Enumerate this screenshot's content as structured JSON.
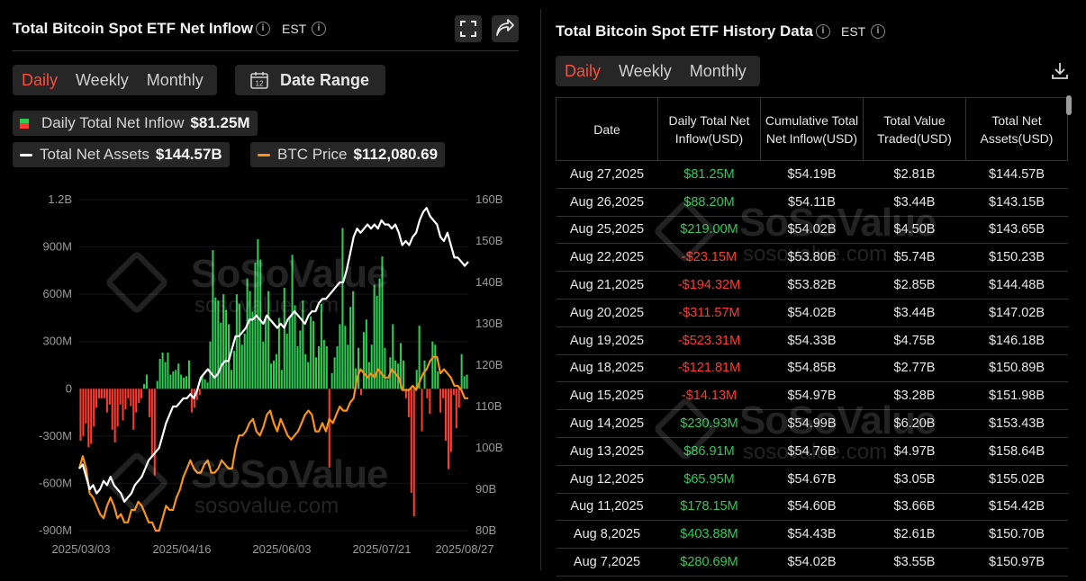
{
  "left": {
    "title": "Total Bitcoin Spot ETF Net Inflow",
    "timezone": "EST",
    "tabs": [
      {
        "label": "Daily",
        "active": true
      },
      {
        "label": "Weekly",
        "active": false
      },
      {
        "label": "Monthly",
        "active": false
      }
    ],
    "date_range_label": "Date Range",
    "calendar_day": "12",
    "stats": {
      "daily_inflow": {
        "label": "Daily Total Net Inflow",
        "value": "$81.25M"
      },
      "net_assets": {
        "label": "Total Net Assets",
        "value": "$144.57B"
      },
      "btc_price": {
        "label": "BTC Price",
        "value": "$112,080.69"
      }
    },
    "icons": {
      "expand": "fullscreen-icon",
      "share": "share-icon",
      "calendar": "calendar-icon",
      "info": "info-icon"
    }
  },
  "right": {
    "title": "Total Bitcoin Spot ETF History Data",
    "timezone": "EST",
    "tabs": [
      {
        "label": "Daily",
        "active": true
      },
      {
        "label": "Weekly",
        "active": false
      },
      {
        "label": "Monthly",
        "active": false
      }
    ],
    "download_icon": "download-icon",
    "table": {
      "headers": [
        "Date",
        "Daily Total Net Inflow(USD)",
        "Cumulative Total Net Inflow(USD)",
        "Total Value Traded(USD)",
        "Total Net Assets(USD)"
      ],
      "rows": [
        [
          "Aug 27,2025",
          "$81.25M",
          "$54.19B",
          "$2.81B",
          "$144.57B"
        ],
        [
          "Aug 26,2025",
          "$88.20M",
          "$54.11B",
          "$3.44B",
          "$143.15B"
        ],
        [
          "Aug 25,2025",
          "$219.00M",
          "$54.02B",
          "$4.50B",
          "$143.65B"
        ],
        [
          "Aug 22,2025",
          "-$23.15M",
          "$53.80B",
          "$5.74B",
          "$150.23B"
        ],
        [
          "Aug 21,2025",
          "-$194.32M",
          "$53.82B",
          "$2.85B",
          "$144.48B"
        ],
        [
          "Aug 20,2025",
          "-$311.57M",
          "$54.02B",
          "$3.44B",
          "$147.02B"
        ],
        [
          "Aug 19,2025",
          "-$523.31M",
          "$54.33B",
          "$4.75B",
          "$146.18B"
        ],
        [
          "Aug 18,2025",
          "-$121.81M",
          "$54.85B",
          "$2.77B",
          "$150.89B"
        ],
        [
          "Aug 15,2025",
          "-$14.13M",
          "$54.97B",
          "$3.28B",
          "$151.98B"
        ],
        [
          "Aug 14,2025",
          "$230.93M",
          "$54.99B",
          "$6.20B",
          "$153.43B"
        ],
        [
          "Aug 13,2025",
          "$86.91M",
          "$54.76B",
          "$4.97B",
          "$158.64B"
        ],
        [
          "Aug 12,2025",
          "$65.95M",
          "$54.67B",
          "$3.05B",
          "$155.02B"
        ],
        [
          "Aug 11,2025",
          "$178.15M",
          "$54.60B",
          "$3.66B",
          "$154.42B"
        ],
        [
          "Aug 8,2025",
          "$403.88M",
          "$54.43B",
          "$2.61B",
          "$150.70B"
        ],
        [
          "Aug 7,2025",
          "$280.69M",
          "$54.02B",
          "$3.55B",
          "$150.97B"
        ]
      ]
    }
  },
  "watermark": {
    "name": "SoSoValue",
    "url": "sosovalue.com"
  },
  "colors": {
    "accent": "#ff4d3a",
    "positive": "#2ecc55",
    "negative": "#ff3b30",
    "btc_line": "#f7931a",
    "assets_line": "#ffffff",
    "background": "#000000"
  },
  "chart_data": {
    "type": "bar",
    "y_left_ticks": [
      "1.2B",
      "900M",
      "600M",
      "300M",
      "0",
      "-300M",
      "-600M",
      "-900M"
    ],
    "y_left_range": [
      -900,
      1200
    ],
    "y_right_ticks": [
      "160B",
      "150B",
      "140B",
      "130B",
      "120B",
      "110B",
      "100B",
      "90B",
      "80B"
    ],
    "y_right_range": [
      80,
      160
    ],
    "x_ticks": [
      "2025/03/03",
      "2025/04/16",
      "2025/06/03",
      "2025/07/21",
      "2025/08/27"
    ],
    "series": [
      {
        "name": "Daily Total Net Inflow",
        "kind": "bar",
        "unit": "M USD",
        "values": [
          -330,
          -300,
          -220,
          -370,
          -350,
          -240,
          -120,
          -60,
          -60,
          -60,
          -150,
          -100,
          -260,
          -340,
          -240,
          -100,
          -200,
          -130,
          -60,
          -110,
          -260,
          -150,
          -90,
          -60,
          30,
          90,
          -180,
          -430,
          -550,
          50,
          190,
          230,
          170,
          230,
          90,
          110,
          120,
          160,
          90,
          70,
          80,
          180,
          -150,
          -120,
          -70,
          -40,
          80,
          60,
          40,
          300,
          880,
          580,
          560,
          420,
          600,
          500,
          410,
          120,
          240,
          600,
          540,
          280,
          350,
          700,
          620,
          490,
          800,
          950,
          820,
          300,
          460,
          620,
          160,
          180,
          220,
          450,
          120,
          640,
          350,
          460,
          850,
          530,
          270,
          370,
          560,
          220,
          170,
          460,
          430,
          200,
          270,
          540,
          310,
          270,
          -500,
          100,
          200,
          270,
          410,
          1020,
          400,
          280,
          520,
          620,
          130,
          260,
          -40,
          360,
          440,
          170,
          280,
          660,
          590,
          700,
          840,
          260,
          60,
          200,
          410,
          180,
          160,
          290,
          180,
          -60,
          -180,
          -660,
          -810,
          120,
          400,
          -270,
          180,
          -60,
          -160,
          300,
          280,
          110,
          -150,
          -60,
          -330,
          -510,
          -400,
          -40,
          -250,
          -120,
          220,
          80,
          90
        ]
      },
      {
        "name": "Total Net Assets",
        "kind": "line",
        "unit": "B USD",
        "values": [
          95,
          96,
          93,
          90,
          91,
          89,
          90,
          92,
          91,
          93,
          91,
          90,
          89,
          87,
          88,
          89,
          91,
          92,
          93,
          95,
          97,
          98,
          99,
          100,
          103,
          106,
          108,
          110,
          110,
          111,
          112,
          112,
          113,
          112,
          114,
          117,
          118,
          119,
          118,
          117,
          118,
          120,
          121,
          121,
          124,
          127,
          127,
          128,
          129,
          131,
          131,
          132,
          131,
          130,
          132,
          131,
          130,
          129,
          130,
          129,
          131,
          132,
          133,
          132,
          131,
          130,
          132,
          133,
          133,
          135,
          136,
          136,
          137,
          138,
          139,
          140,
          140,
          143,
          147,
          151,
          153,
          152,
          153,
          154,
          153,
          154,
          153,
          155,
          154,
          154,
          153,
          154,
          152,
          149,
          150,
          149,
          151,
          152,
          155,
          157,
          158,
          156,
          155,
          154,
          151,
          150,
          152,
          149,
          146,
          146,
          145,
          144,
          145
        ]
      },
      {
        "name": "BTC Price",
        "kind": "line",
        "unit": "K USD",
        "values": [
          95,
          98,
          95,
          89,
          88,
          86,
          84,
          83,
          86,
          88,
          86,
          83,
          84,
          82,
          82,
          85,
          85,
          87,
          86,
          84,
          82,
          82,
          80,
          80,
          83,
          86,
          85,
          85,
          88,
          90,
          93,
          95,
          97,
          95,
          94,
          94,
          96,
          97,
          94,
          94,
          95,
          97,
          96,
          95,
          95,
          100,
          103,
          103,
          104,
          106,
          107,
          104,
          103,
          105,
          108,
          109,
          106,
          104,
          107,
          105,
          103,
          102,
          103,
          104,
          106,
          108,
          109,
          108,
          104,
          104,
          106,
          104,
          107,
          106,
          108,
          110,
          109,
          109,
          111,
          112,
          117,
          119,
          118,
          117,
          118,
          117,
          119,
          118,
          117,
          117,
          119,
          118,
          117,
          114,
          114,
          114,
          115,
          114,
          116,
          118,
          119,
          121,
          122,
          122,
          118,
          119,
          118,
          117,
          115,
          115,
          114,
          112,
          112
        ]
      }
    ]
  }
}
